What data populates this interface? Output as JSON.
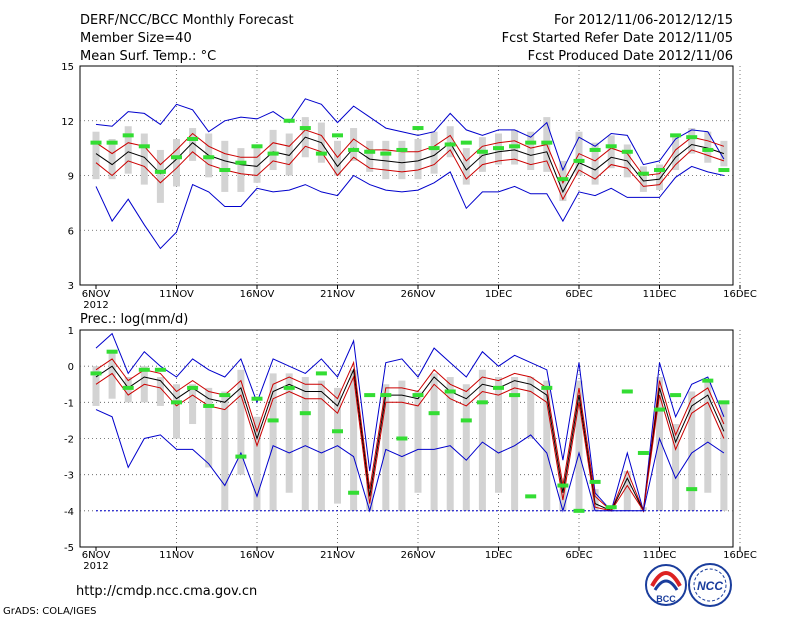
{
  "header": {
    "title": "DERF/NCC/BCC Monthly Forecast",
    "member": "Member Size=40",
    "variable": "Mean Surf. Temp.: °C",
    "period": "For 2012/11/06-2012/12/15",
    "started": "Fcst Started Refer Date 2012/11/05",
    "produced": "Fcst Produced Date 2012/11/06"
  },
  "footer": {
    "url": "http://cmdp.ncc.cma.gov.cn",
    "credit": "GrADS: COLA/IGES",
    "logo_bcc": "BCC",
    "logo_ncc": "NCC"
  },
  "colors": {
    "max_min": "#0000cc",
    "spread": "#cc0000",
    "mean": "#000000",
    "box": "#d3d3d3",
    "median": "#33dd33",
    "floor": "#0000cc"
  },
  "x_ticks": [
    "6NOV",
    "11NOV",
    "16NOV",
    "21NOV",
    "26NOV",
    "1DEC",
    "6DEC",
    "11DEC",
    "16DEC"
  ],
  "x_year": "2012",
  "chart_data": [
    {
      "type": "line",
      "title": "Mean Surf. Temp.: °C",
      "ylim": [
        3,
        15
      ],
      "yticks": [
        3,
        6,
        9,
        12,
        15
      ],
      "days": 40,
      "series": [
        {
          "name": "max",
          "values": [
            11.8,
            11.7,
            12.5,
            12.4,
            11.8,
            12.9,
            12.6,
            11.4,
            12.0,
            12.2,
            12.1,
            12.5,
            11.9,
            13.2,
            12.9,
            11.9,
            12.8,
            12.2,
            11.6,
            11.4,
            11.2,
            11.4,
            12.4,
            11.5,
            11.2,
            11.5,
            11.5,
            11.1,
            11.9,
            9.3,
            11.1,
            10.6,
            11.3,
            11.2,
            9.6,
            9.8,
            11.0,
            11.5,
            11.4,
            9.9
          ]
        },
        {
          "name": "upper",
          "values": [
            10.8,
            10.2,
            10.8,
            10.6,
            9.6,
            10.4,
            11.3,
            10.6,
            10.2,
            10.0,
            10.0,
            10.8,
            10.6,
            11.5,
            11.2,
            10.0,
            11.0,
            10.4,
            10.4,
            10.3,
            10.3,
            10.6,
            11.2,
            9.8,
            10.6,
            10.8,
            10.9,
            10.5,
            10.7,
            8.6,
            10.2,
            9.8,
            10.5,
            10.2,
            9.0,
            9.1,
            10.4,
            11.1,
            10.9,
            10.6
          ]
        },
        {
          "name": "mean",
          "values": [
            10.2,
            9.6,
            10.3,
            10.0,
            9.1,
            9.9,
            10.8,
            10.1,
            9.8,
            9.6,
            9.5,
            10.3,
            10.1,
            11.1,
            10.8,
            9.5,
            10.5,
            9.9,
            9.8,
            9.7,
            9.8,
            10.1,
            10.8,
            9.3,
            10.1,
            10.3,
            10.4,
            10.1,
            10.3,
            8.1,
            9.7,
            9.3,
            10.0,
            9.8,
            8.7,
            8.8,
            10.0,
            10.7,
            10.5,
            10.2
          ]
        },
        {
          "name": "lower",
          "values": [
            9.7,
            9.0,
            9.8,
            9.5,
            8.6,
            9.4,
            10.3,
            9.6,
            9.3,
            9.1,
            9.0,
            9.8,
            9.6,
            10.6,
            10.3,
            9.0,
            10.0,
            9.4,
            9.3,
            9.2,
            9.3,
            9.6,
            10.4,
            8.8,
            9.6,
            9.8,
            9.9,
            9.6,
            9.8,
            7.7,
            9.3,
            8.8,
            9.6,
            9.4,
            8.4,
            8.5,
            9.6,
            10.4,
            10.1,
            9.8
          ]
        },
        {
          "name": "min",
          "values": [
            8.4,
            6.5,
            7.7,
            6.3,
            5.0,
            5.9,
            8.5,
            8.1,
            7.3,
            7.3,
            8.3,
            8.1,
            8.2,
            8.5,
            8.1,
            7.9,
            9.0,
            8.5,
            8.2,
            8.1,
            8.2,
            8.6,
            9.2,
            7.2,
            8.1,
            8.1,
            8.4,
            8.0,
            8.0,
            6.5,
            8.1,
            7.9,
            8.3,
            7.8,
            7.8,
            7.8,
            8.9,
            9.5,
            9.2,
            9.0
          ]
        }
      ],
      "boxes": {
        "top": [
          11.4,
          11.0,
          11.7,
          11.3,
          10.4,
          11.0,
          11.6,
          11.3,
          10.9,
          10.5,
          10.6,
          11.5,
          11.3,
          12.2,
          11.9,
          10.9,
          11.6,
          10.9,
          10.9,
          10.9,
          11.0,
          11.4,
          11.7,
          10.5,
          11.1,
          11.3,
          11.5,
          11.4,
          12.2,
          9.8,
          11.4,
          10.8,
          11.2,
          10.7,
          9.5,
          9.6,
          11.1,
          11.6,
          11.4,
          10.9
        ],
        "bottom": [
          8.8,
          8.8,
          9.1,
          8.5,
          7.5,
          8.4,
          9.8,
          8.9,
          8.1,
          8.1,
          8.6,
          9.3,
          9.0,
          10.0,
          9.7,
          9.0,
          9.8,
          9.2,
          8.8,
          8.8,
          8.8,
          9.1,
          10.0,
          8.5,
          9.2,
          9.6,
          9.6,
          9.3,
          9.2,
          7.6,
          9.0,
          8.5,
          9.4,
          8.9,
          8.1,
          8.2,
          9.3,
          10.2,
          9.7,
          9.5
        ],
        "median": [
          10.8,
          10.8,
          11.2,
          10.6,
          9.2,
          10.0,
          11.0,
          10.0,
          9.3,
          9.7,
          10.6,
          10.2,
          12.0,
          11.6,
          10.2,
          11.2,
          10.4,
          10.3,
          10.2,
          10.4,
          11.6,
          10.5,
          10.7,
          10.8,
          10.3,
          10.5,
          10.6,
          10.8,
          10.8,
          8.8,
          9.8,
          10.4,
          10.6,
          10.3,
          9.1,
          9.3,
          11.2,
          11.1,
          10.4,
          9.3
        ]
      }
    },
    {
      "type": "line",
      "title": "Prec.: log(mm/d)",
      "ylim": [
        -5,
        1
      ],
      "yticks": [
        -5,
        -4,
        -3,
        -2,
        -1,
        0,
        1
      ],
      "days": 40,
      "series": [
        {
          "name": "max",
          "values": [
            0.5,
            0.9,
            -0.2,
            0.4,
            0.0,
            -0.3,
            0.2,
            -0.1,
            -0.3,
            0.2,
            -1.0,
            0.2,
            0.0,
            -0.2,
            0.2,
            -0.3,
            0.7,
            -2.9,
            0.1,
            0.2,
            -0.3,
            0.5,
            0.1,
            -0.3,
            0.4,
            0.0,
            0.3,
            0.1,
            -0.1,
            -2.6,
            0.1,
            -3.5,
            -4.0,
            -2.4,
            -4.0,
            0.1,
            -1.4,
            -0.5,
            -0.3,
            -1.4
          ]
        },
        {
          "name": "upper",
          "values": [
            -0.1,
            0.2,
            -0.4,
            -0.1,
            -0.2,
            -0.7,
            -0.4,
            -0.7,
            -0.8,
            -0.4,
            -1.8,
            -0.5,
            -0.3,
            -0.5,
            -0.5,
            -0.9,
            0.1,
            -3.4,
            -0.6,
            -0.6,
            -0.7,
            -0.1,
            -0.5,
            -0.7,
            -0.3,
            -0.4,
            -0.2,
            -0.3,
            -0.6,
            -3.3,
            -0.6,
            -3.6,
            -4.0,
            -2.9,
            -4.0,
            -0.4,
            -1.9,
            -0.9,
            -0.6,
            -1.6
          ]
        },
        {
          "name": "mean",
          "values": [
            -0.3,
            0.0,
            -0.6,
            -0.3,
            -0.4,
            -0.9,
            -0.6,
            -0.9,
            -1.0,
            -0.6,
            -2.0,
            -0.7,
            -0.5,
            -0.7,
            -0.7,
            -1.1,
            -0.1,
            -3.6,
            -0.8,
            -0.8,
            -0.9,
            -0.3,
            -0.7,
            -0.9,
            -0.5,
            -0.6,
            -0.4,
            -0.5,
            -0.8,
            -3.5,
            -0.8,
            -3.8,
            -4.0,
            -3.1,
            -4.0,
            -0.6,
            -2.1,
            -1.1,
            -0.8,
            -1.8
          ]
        },
        {
          "name": "lower",
          "values": [
            -0.5,
            -0.2,
            -0.8,
            -0.5,
            -0.6,
            -1.1,
            -0.8,
            -1.1,
            -1.2,
            -0.8,
            -2.2,
            -0.9,
            -0.7,
            -0.9,
            -0.9,
            -1.3,
            -0.3,
            -3.8,
            -1.0,
            -1.0,
            -1.1,
            -0.5,
            -0.9,
            -1.1,
            -0.7,
            -0.8,
            -0.6,
            -0.7,
            -1.0,
            -3.7,
            -1.0,
            -3.9,
            -4.0,
            -3.3,
            -4.0,
            -0.8,
            -2.3,
            -1.3,
            -1.0,
            -2.0
          ]
        },
        {
          "name": "min",
          "values": [
            -1.2,
            -1.4,
            -2.8,
            -2.0,
            -1.9,
            -2.3,
            -2.3,
            -2.7,
            -3.3,
            -2.4,
            -3.6,
            -2.2,
            -2.4,
            -2.2,
            -2.4,
            -2.2,
            -2.5,
            -4.0,
            -2.3,
            -2.5,
            -2.3,
            -2.3,
            -2.2,
            -2.6,
            -2.1,
            -2.4,
            -2.2,
            -1.9,
            -2.4,
            -4.0,
            -2.4,
            -4.0,
            -4.0,
            -4.0,
            -4.0,
            -2.0,
            -3.1,
            -2.4,
            -2.1,
            -2.4
          ]
        },
        {
          "name": "floor",
          "values": [
            -4,
            -4,
            -4,
            -4,
            -4,
            -4,
            -4,
            -4,
            -4,
            -4,
            -4,
            -4,
            -4,
            -4,
            -4,
            -4,
            -4,
            -4,
            -4,
            -4,
            -4,
            -4,
            -4,
            -4,
            -4,
            -4,
            -4,
            -4,
            -4,
            -4,
            -4,
            -4,
            -4,
            -4,
            -4,
            -4,
            -4,
            -4,
            -4,
            -4
          ]
        }
      ],
      "boxes": {
        "top": [
          0.0,
          0.4,
          -0.3,
          0.0,
          -0.3,
          -0.5,
          -0.5,
          -0.6,
          -0.7,
          -0.1,
          -1.4,
          -0.2,
          -0.2,
          -0.3,
          -0.4,
          -0.6,
          -0.1,
          -3.2,
          -0.5,
          -0.4,
          -0.7,
          -0.2,
          -0.3,
          -0.5,
          -0.1,
          -0.3,
          -0.3,
          -0.3,
          -0.4,
          -3.1,
          -0.4,
          -3.4,
          -3.9,
          -2.9,
          -3.9,
          -0.3,
          -1.6,
          -0.7,
          -0.4,
          -1.0
        ],
        "bottom": [
          -1.1,
          -0.9,
          -1.0,
          -1.0,
          -1.1,
          -2.0,
          -1.6,
          -2.8,
          -4.0,
          -3.0,
          -4.0,
          -4.0,
          -3.5,
          -4.0,
          -4.0,
          -3.8,
          -4.0,
          -4.0,
          -4.0,
          -4.0,
          -3.5,
          -4.0,
          -4.0,
          -4.0,
          -4.0,
          -3.5,
          -4.0,
          -2.0,
          -4.0,
          -4.0,
          -4.0,
          -4.0,
          -4.0,
          -4.0,
          -4.0,
          -4.0,
          -4.0,
          -4.0,
          -3.5,
          -4.0
        ],
        "median": [
          -0.2,
          0.4,
          -0.6,
          -0.1,
          -0.1,
          -1.0,
          -0.6,
          -1.1,
          -0.8,
          -2.5,
          -0.9,
          -1.5,
          -0.6,
          -1.3,
          -0.2,
          -1.8,
          -3.5,
          -0.8,
          -0.8,
          -2.0,
          -0.8,
          -1.3,
          -0.7,
          -1.5,
          -1.0,
          -0.6,
          -0.8,
          -3.6,
          -0.6,
          -3.3,
          -4.0,
          -3.2,
          -3.9,
          -0.7,
          -2.4,
          -1.2,
          -0.8,
          -3.4,
          -0.4,
          -1.0
        ]
      }
    }
  ]
}
